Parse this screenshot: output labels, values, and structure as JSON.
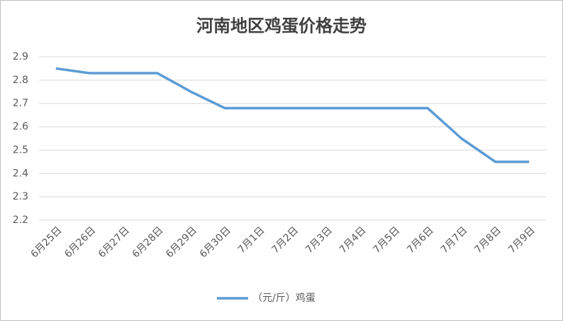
{
  "chart_data": {
    "type": "line",
    "title": "河南地区鸡蛋价格走势",
    "categories": [
      "6月25日",
      "6月26日",
      "6月27日",
      "6月28日",
      "6月29日",
      "6月30日",
      "7月1日",
      "7月2日",
      "7月3日",
      "7月4日",
      "7月5日",
      "7月6日",
      "7月7日",
      "7月8日",
      "7月9日"
    ],
    "series": [
      {
        "name": "（元/斤）鸡蛋",
        "color": "#5b9bd5",
        "values": [
          2.85,
          2.83,
          2.83,
          2.83,
          2.75,
          2.68,
          2.68,
          2.68,
          2.68,
          2.68,
          2.68,
          2.68,
          2.55,
          2.45,
          2.45
        ]
      }
    ],
    "ylim": [
      2.2,
      2.9
    ],
    "yticks": [
      2.2,
      2.3,
      2.4,
      2.5,
      2.6,
      2.7,
      2.8,
      2.9
    ],
    "grid": true,
    "legend": "bottom"
  }
}
